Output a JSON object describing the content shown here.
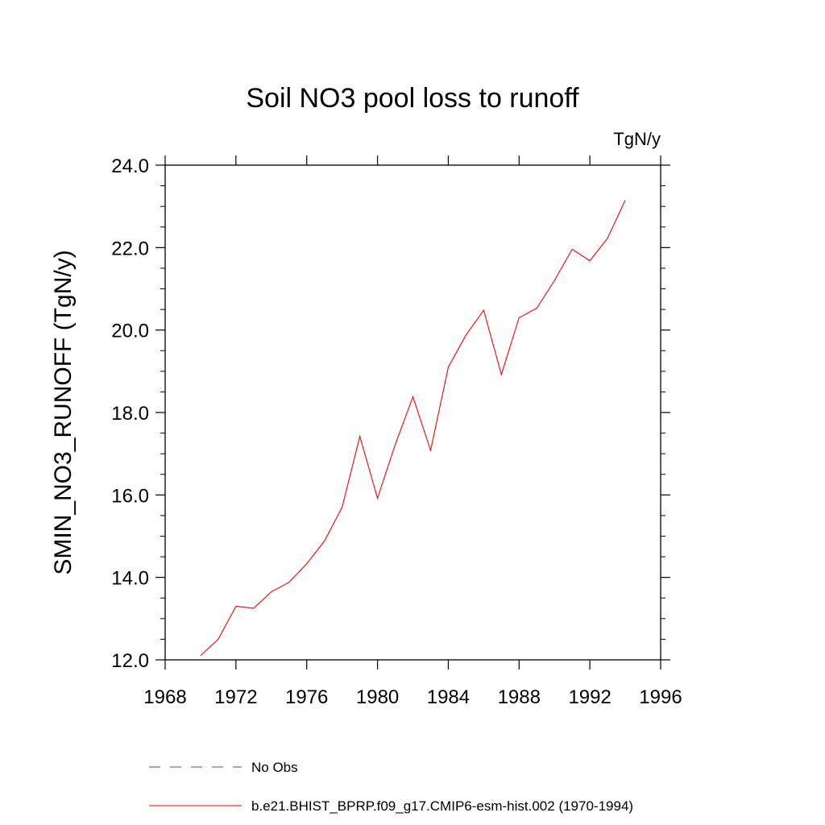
{
  "chart_data": {
    "type": "line",
    "title": "Soil NO3 pool loss to runoff",
    "units_label": "TgN/y",
    "ylabel": "SMIN_NO3_RUNOFF  (TgN/y)",
    "xlabel": "",
    "xlim": [
      1968,
      1996
    ],
    "ylim": [
      12.0,
      24.0
    ],
    "x_ticks": [
      "1968",
      "1972",
      "1976",
      "1980",
      "1984",
      "1988",
      "1992",
      "1996"
    ],
    "y_ticks": [
      "12.0",
      "14.0",
      "16.0",
      "18.0",
      "20.0",
      "22.0",
      "24.0"
    ],
    "grid": false,
    "legend_position": "bottom",
    "series": [
      {
        "name": "No Obs",
        "color": "#4444cc",
        "dashed": true,
        "x": [],
        "values": []
      },
      {
        "name": "b.e21.BHIST_BPRP.f09_g17.CMIP6-esm-hist.002 (1970-1994)",
        "color": "#ff0000",
        "dashed": false,
        "x": [
          1970,
          1971,
          1972,
          1973,
          1974,
          1975,
          1976,
          1977,
          1978,
          1979,
          1980,
          1981,
          1982,
          1983,
          1984,
          1985,
          1986,
          1987,
          1988,
          1989,
          1990,
          1991,
          1992,
          1993,
          1994
        ],
        "values": [
          12.1,
          12.5,
          13.3,
          13.25,
          13.65,
          13.88,
          14.33,
          14.88,
          15.7,
          17.42,
          15.92,
          17.22,
          18.38,
          17.08,
          19.1,
          19.88,
          20.48,
          18.92,
          20.3,
          20.53,
          21.2,
          21.96,
          21.68,
          22.23,
          23.15
        ]
      }
    ]
  }
}
